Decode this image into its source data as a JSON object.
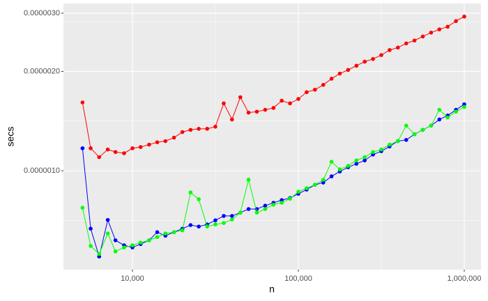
{
  "chart_data": {
    "type": "line",
    "xlabel": "n",
    "ylabel": "secs",
    "xlog": true,
    "ylog": true,
    "grid": true,
    "x": [
      5000,
      5600,
      6300,
      7100,
      7900,
      8900,
      10000,
      11200,
      12600,
      14100,
      15800,
      17800,
      20000,
      22400,
      25100,
      28200,
      31600,
      35500,
      39800,
      44700,
      50100,
      56200,
      63100,
      70800,
      79400,
      89100,
      100000,
      112200,
      125900,
      141300,
      158500,
      177800,
      199500,
      223900,
      251200,
      281800,
      316200,
      354800,
      398100,
      446700,
      501200,
      562300,
      631000,
      707900,
      794300,
      891300,
      1000000
    ],
    "series": [
      {
        "color": "#ff0000",
        "values": [
          1.61e-06,
          1.17e-06,
          1.1e-06,
          1.16e-06,
          1.14e-06,
          1.13e-06,
          1.17e-06,
          1.18e-06,
          1.2e-06,
          1.22e-06,
          1.23e-06,
          1.26e-06,
          1.31e-06,
          1.33e-06,
          1.34e-06,
          1.34e-06,
          1.36e-06,
          1.6e-06,
          1.43e-06,
          1.67e-06,
          1.5e-06,
          1.51e-06,
          1.53e-06,
          1.55e-06,
          1.63e-06,
          1.6e-06,
          1.65e-06,
          1.73e-06,
          1.76e-06,
          1.82e-06,
          1.9e-06,
          1.97e-06,
          2.02e-06,
          2.08e-06,
          2.14e-06,
          2.18e-06,
          2.24e-06,
          2.32e-06,
          2.36e-06,
          2.43e-06,
          2.48e-06,
          2.55e-06,
          2.62e-06,
          2.68e-06,
          2.73e-06,
          2.84e-06,
          2.93e-06
        ]
      },
      {
        "color": "#0000ff",
        "values": [
          1.17e-06,
          6.68e-07,
          5.5e-07,
          7.1e-07,
          6.16e-07,
          5.95e-07,
          5.86e-07,
          6e-07,
          6.16e-07,
          6.52e-07,
          6.36e-07,
          6.52e-07,
          6.68e-07,
          6.85e-07,
          6.78e-07,
          6.88e-07,
          7.08e-07,
          7.3e-07,
          7.3e-07,
          7.47e-07,
          7.66e-07,
          7.66e-07,
          7.84e-07,
          8e-07,
          8.15e-07,
          8.27e-07,
          8.52e-07,
          8.77e-07,
          9.07e-07,
          9.21e-07,
          9.62e-07,
          9.95e-07,
          1.025e-06,
          1.05e-06,
          1.075e-06,
          1.12e-06,
          1.146e-06,
          1.185e-06,
          1.23e-06,
          1.24e-06,
          1.29e-06,
          1.33e-06,
          1.37e-06,
          1.43e-06,
          1.47e-06,
          1.53e-06,
          1.59e-06
        ]
      },
      {
        "color": "#00ff00",
        "values": [
          7.73e-07,
          5.92e-07,
          5.6e-07,
          6.46e-07,
          5.7e-07,
          5.86e-07,
          5.95e-07,
          6.06e-07,
          6.16e-07,
          6.3e-07,
          6.46e-07,
          6.52e-07,
          6.6e-07,
          8.6e-07,
          8.2e-07,
          6.78e-07,
          6.88e-07,
          6.95e-07,
          7.12e-07,
          7.47e-07,
          9.4e-07,
          7.47e-07,
          7.66e-07,
          7.9e-07,
          8e-07,
          8.23e-07,
          8.64e-07,
          8.86e-07,
          9.07e-07,
          9.39e-07,
          1.065e-06,
          1.01e-06,
          1.035e-06,
          1.075e-06,
          1.1e-06,
          1.14e-06,
          1.16e-06,
          1.2e-06,
          1.23e-06,
          1.37e-06,
          1.29e-06,
          1.33e-06,
          1.37e-06,
          1.53e-06,
          1.45e-06,
          1.51e-06,
          1.56e-06
        ]
      }
    ],
    "xlim": [
      3837,
      1262000
    ],
    "xticks": [
      {
        "value": 10000,
        "label": "10,000"
      },
      {
        "value": 100000,
        "label": "100,000"
      },
      {
        "value": 1000000,
        "label": "1,000,000"
      }
    ],
    "ylim": [
      5.02e-07,
      3.21e-06
    ],
    "yticks": [
      {
        "value": 1e-06,
        "label": "0.0000010"
      },
      {
        "value": 2e-06,
        "label": "0.0000020"
      },
      {
        "value": 3e-06,
        "label": "0.0000030"
      }
    ]
  }
}
